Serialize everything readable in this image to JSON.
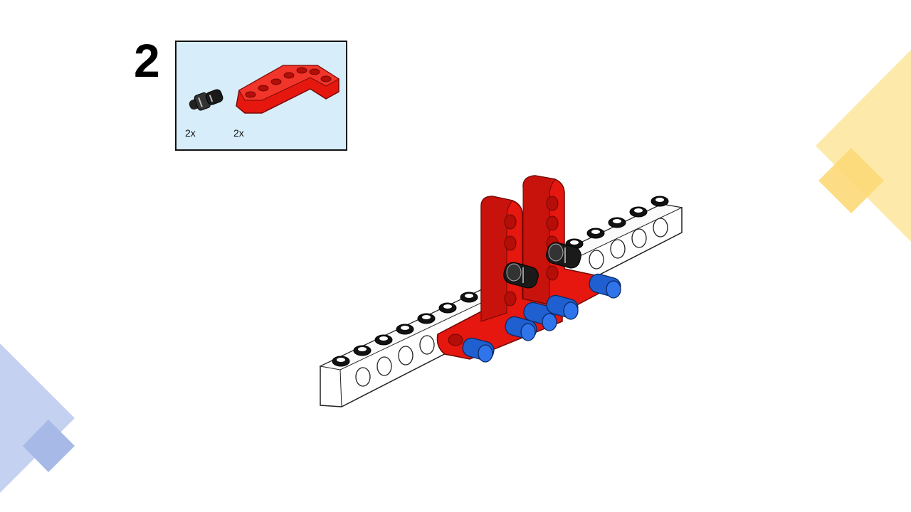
{
  "step": {
    "number": "2"
  },
  "parts": [
    {
      "icon": "black-connector-pin-icon",
      "quantity": "2x"
    },
    {
      "icon": "red-l-beam-icon",
      "quantity": "2x"
    }
  ],
  "colors": {
    "part_panel_bg": "#d7edf9",
    "red_beam": "#e5170f",
    "blue_pin": "#1f5fd0",
    "black_pin": "#1a1a1a",
    "white_beam": "#ffffff",
    "deco_yellow": "#fde59a",
    "deco_blue": "#b9c9ec"
  }
}
